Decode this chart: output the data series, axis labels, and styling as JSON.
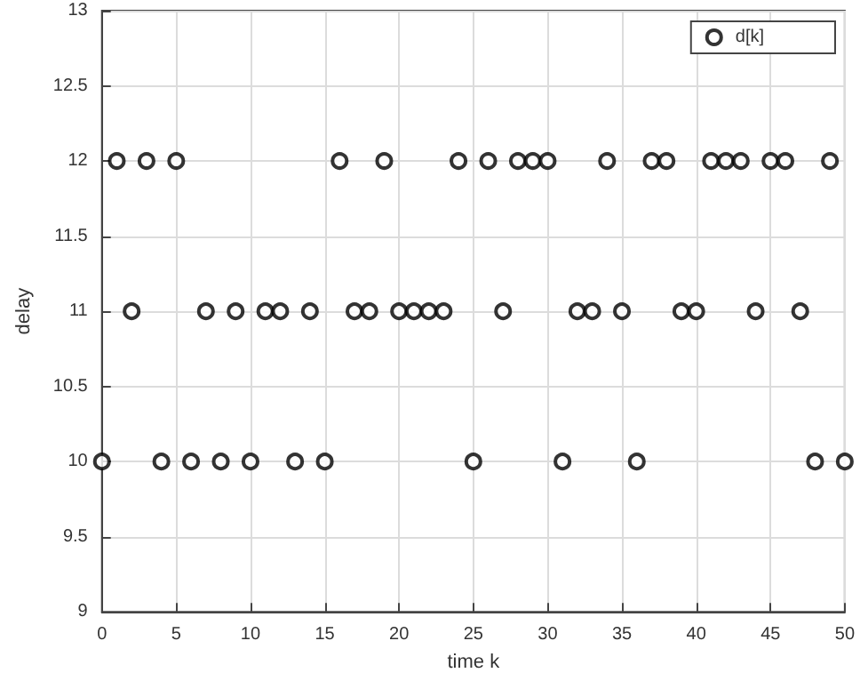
{
  "chart_data": {
    "type": "scatter",
    "xlabel": "time k",
    "ylabel": "delay",
    "x": [
      0,
      1,
      2,
      3,
      4,
      5,
      6,
      7,
      8,
      9,
      10,
      11,
      12,
      13,
      14,
      15,
      16,
      17,
      18,
      19,
      20,
      21,
      22,
      23,
      24,
      25,
      26,
      27,
      28,
      29,
      30,
      31,
      32,
      33,
      34,
      35,
      36,
      37,
      38,
      39,
      40,
      41,
      42,
      43,
      44,
      45,
      46,
      47,
      48,
      49,
      50
    ],
    "series": [
      {
        "name": "d[k]",
        "color": "#000000",
        "values": [
          10,
          12,
          11,
          12,
          10,
          12,
          10,
          11,
          10,
          11,
          10,
          11,
          11,
          10,
          11,
          10,
          12,
          11,
          11,
          12,
          11,
          11,
          11,
          11,
          12,
          10,
          12,
          11,
          12,
          12,
          12,
          10,
          11,
          11,
          12,
          11,
          10,
          12,
          12,
          11,
          11,
          12,
          12,
          12,
          11,
          12,
          12,
          11,
          10,
          12,
          10
        ]
      }
    ],
    "xlim": [
      0,
      50
    ],
    "xticks": [
      0,
      5,
      10,
      15,
      20,
      25,
      30,
      35,
      40,
      45,
      50
    ],
    "ylim": [
      9,
      13
    ],
    "yticks": [
      9,
      9.5,
      10,
      10.5,
      11,
      11.5,
      12,
      12.5,
      13
    ],
    "grid": true,
    "legend": "top right",
    "marker": "circle"
  }
}
